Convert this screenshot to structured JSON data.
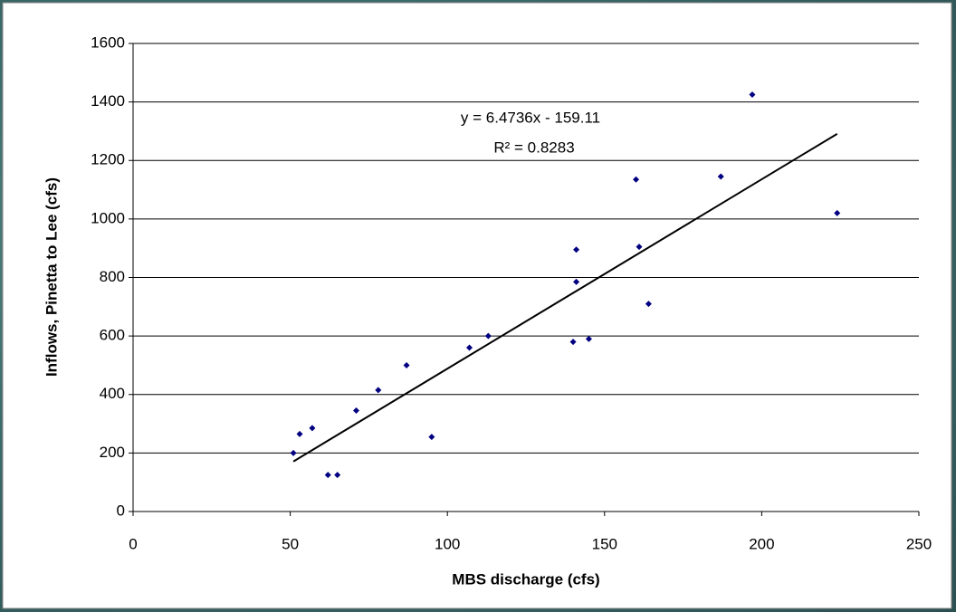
{
  "chart_data": {
    "type": "scatter",
    "x_label": "MBS discharge (cfs)",
    "y_label": "Inflows, Pinetta to Lee (cfs)",
    "color": "#000080",
    "x": [
      51,
      53,
      57,
      62,
      65,
      71,
      78,
      87,
      95,
      107,
      113,
      140,
      145,
      141,
      141,
      161,
      160,
      164,
      187,
      197,
      224
    ],
    "y": [
      200,
      265,
      285,
      125,
      125,
      345,
      415,
      500,
      255,
      560,
      600,
      580,
      590,
      785,
      895,
      905,
      1135,
      710,
      1145,
      1425,
      1020
    ],
    "trendline": {
      "label": "y = 6.4736x - 159.11",
      "r2_label": "R² = 0.8283",
      "color": "#000000",
      "x": [
        51,
        224
      ],
      "y": [
        171,
        1291
      ]
    },
    "xlim": [
      0,
      250
    ],
    "xticks": [
      0,
      50,
      100,
      150,
      200,
      250
    ],
    "ylim": [
      0,
      1600
    ],
    "yticks": [
      0,
      200,
      400,
      600,
      800,
      1000,
      1200,
      1400,
      1600
    ],
    "grid": true
  }
}
